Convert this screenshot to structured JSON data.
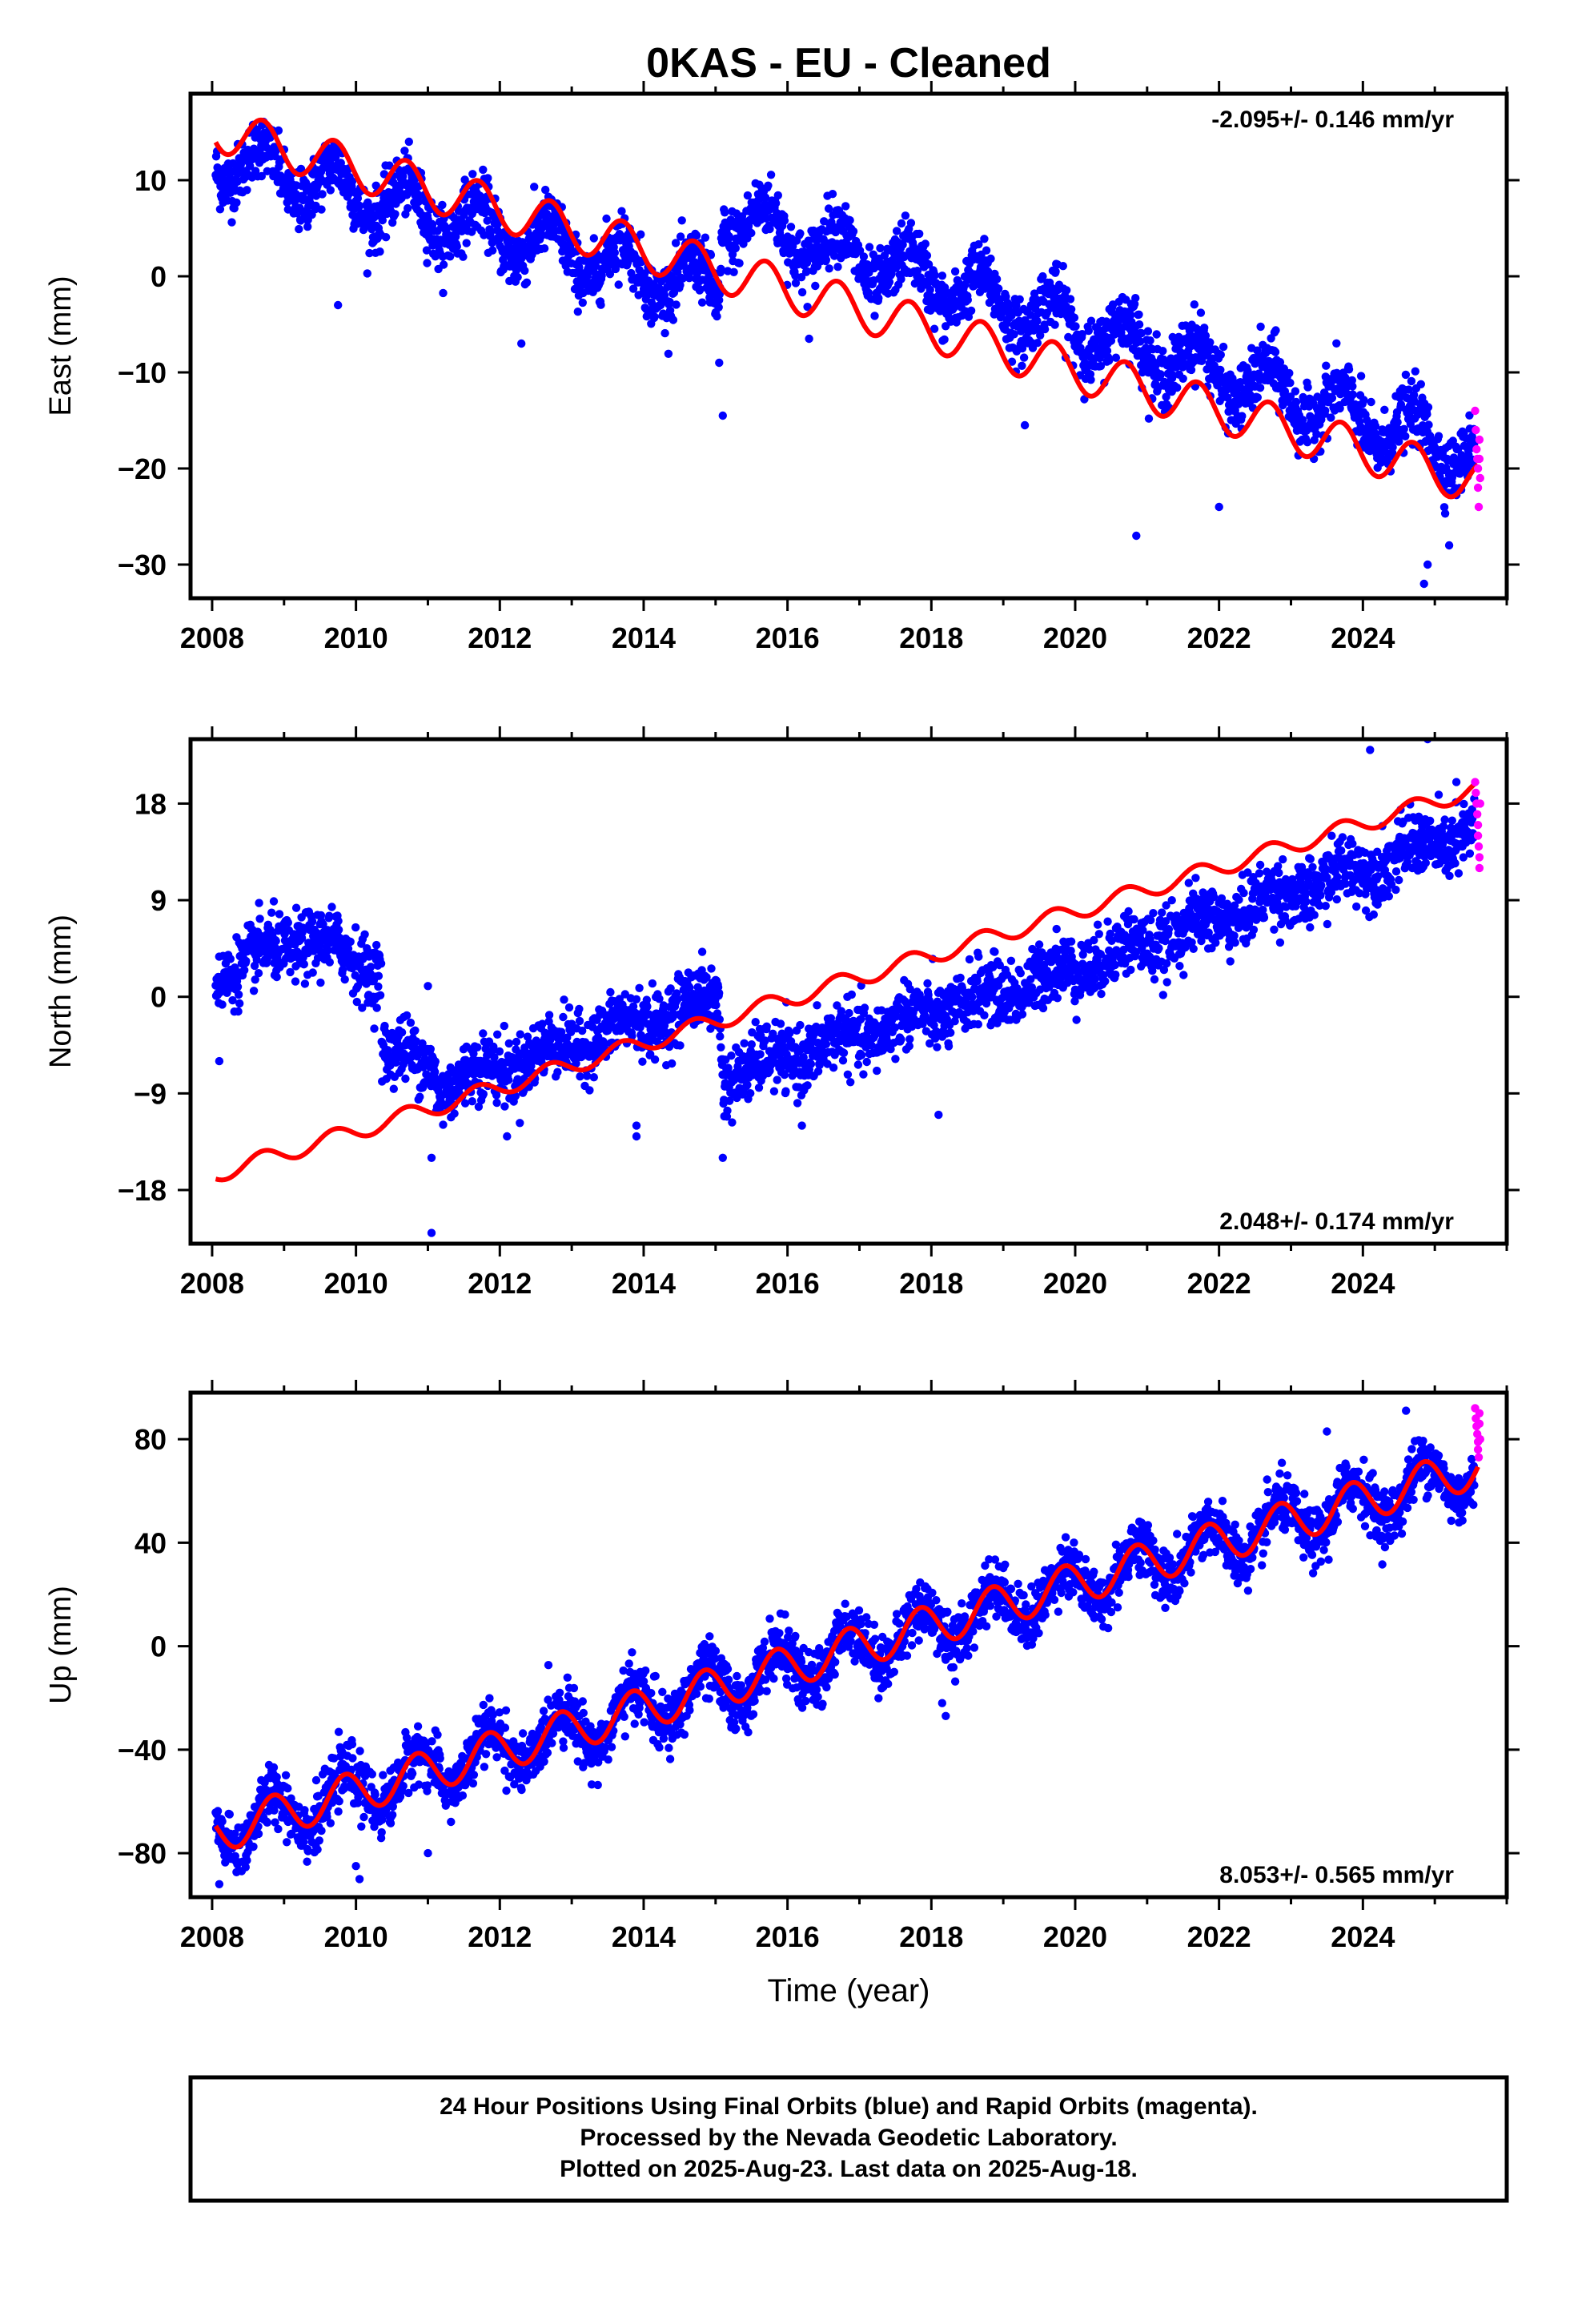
{
  "title": "0KAS  - EU - Cleaned",
  "footer": {
    "lines": [
      "24 Hour Positions Using Final Orbits (blue) and Rapid Orbits (magenta).",
      "Processed by the Nevada Geodetic Laboratory.",
      "Plotted on 2025-Aug-23. Last data on 2025-Aug-18."
    ]
  },
  "colors": {
    "final_orbits": "#0000ff",
    "rapid_orbits": "#ff00ff",
    "model": "#ff0000",
    "frame": "#000000"
  },
  "chart_data": [
    {
      "type": "scatter",
      "id": "east",
      "ylabel": "East (mm)",
      "xlabel": "",
      "xlim": [
        2007.7,
        2026.0
      ],
      "ylim": [
        -33.5,
        19
      ],
      "yticks": [
        -30,
        -20,
        -10,
        0,
        10
      ],
      "xticks": [
        2008,
        2010,
        2012,
        2014,
        2016,
        2018,
        2020,
        2022,
        2024
      ],
      "rate_label": "-2.095+/- 0.146 mm/yr",
      "rate_position": "top-right",
      "grid": false,
      "series": [
        {
          "name": "Final Orbits",
          "color": "#0000ff",
          "trend": [
            [
              2008.05,
              12.5
            ],
            [
              2015.05,
              -1.5
            ],
            [
              2015.1,
              6.5
            ],
            [
              2025.55,
              -18.5
            ]
          ],
          "seasonal_amplitude": 2.5,
          "seasonal_phase_year": 0.45,
          "noise_sd": 1.6,
          "x_range": [
            2008.05,
            2025.55
          ],
          "outliers": [
            [
              2009.75,
              -3
            ],
            [
              2012.3,
              -7
            ],
            [
              2014.1,
              -1.5
            ],
            [
              2015.05,
              -9
            ],
            [
              2015.1,
              -14.5
            ],
            [
              2016.3,
              -6.5
            ],
            [
              2019.3,
              -15.5
            ],
            [
              2020.85,
              -27
            ],
            [
              2022.0,
              -24
            ],
            [
              2024.85,
              -32
            ],
            [
              2024.9,
              -30
            ],
            [
              2025.2,
              -28
            ]
          ]
        },
        {
          "name": "Rapid Orbits",
          "color": "#ff00ff",
          "x_range": [
            2025.56,
            2025.63
          ],
          "values": [
            [
              2025.56,
              -14
            ],
            [
              2025.57,
              -16
            ],
            [
              2025.58,
              -18
            ],
            [
              2025.59,
              -19
            ],
            [
              2025.6,
              -20
            ],
            [
              2025.6,
              -22
            ],
            [
              2025.61,
              -24
            ],
            [
              2025.62,
              -17
            ],
            [
              2025.62,
              -19
            ],
            [
              2025.63,
              -21
            ]
          ]
        },
        {
          "name": "Model",
          "color": "#ff0000",
          "type": "line",
          "x": [
            2008.05,
            2025.6
          ],
          "y_start": 15.3,
          "rate_mm_per_yr": -2.095,
          "seasonal_amplitude": 2.3,
          "seasonal_phase_year": 0.45,
          "steps": [
            [
              2015.1,
              0.0
            ]
          ]
        }
      ]
    },
    {
      "type": "scatter",
      "id": "north",
      "ylabel": "North (mm)",
      "xlabel": "",
      "xlim": [
        2007.7,
        2026.0
      ],
      "ylim": [
        -23,
        24
      ],
      "yticks": [
        -18,
        -9,
        0,
        9,
        18
      ],
      "xticks": [
        2008,
        2010,
        2012,
        2014,
        2016,
        2018,
        2020,
        2022,
        2024
      ],
      "rate_label": "2.048+/- 0.174 mm/yr",
      "rate_position": "bottom-right",
      "grid": false,
      "series": [
        {
          "name": "Final Orbits",
          "color": "#0000ff",
          "trend": [
            [
              2008.05,
              2.0
            ],
            [
              2009.3,
              5.5
            ],
            [
              2010.35,
              2.5
            ],
            [
              2010.36,
              -5.0
            ],
            [
              2011.1,
              -6.5
            ],
            [
              2011.11,
              -8.5
            ],
            [
              2015.05,
              0.0
            ],
            [
              2015.1,
              -7.5
            ],
            [
              2019.0,
              0.5
            ],
            [
              2021.0,
              5.0
            ],
            [
              2025.55,
              15.5
            ]
          ],
          "seasonal_amplitude": 0.8,
          "seasonal_phase_year": 0.45,
          "noise_sd": 1.5,
          "x_range": [
            2008.05,
            2025.55
          ],
          "outliers": [
            [
              2008.1,
              -6
            ],
            [
              2011.05,
              -22
            ],
            [
              2011.05,
              -15
            ],
            [
              2011.0,
              1
            ],
            [
              2012.1,
              -13
            ],
            [
              2013.9,
              -12
            ],
            [
              2013.9,
              -13
            ],
            [
              2015.1,
              -15
            ],
            [
              2016.2,
              -12
            ],
            [
              2018.1,
              -11
            ],
            [
              2021.1,
              3
            ],
            [
              2024.9,
              24
            ],
            [
              2025.3,
              20
            ],
            [
              2024.1,
              23
            ]
          ]
        },
        {
          "name": "Rapid Orbits",
          "color": "#ff00ff",
          "x_range": [
            2025.56,
            2025.63
          ],
          "values": [
            [
              2025.56,
              20
            ],
            [
              2025.57,
              19
            ],
            [
              2025.58,
              18
            ],
            [
              2025.59,
              17
            ],
            [
              2025.6,
              16
            ],
            [
              2025.6,
              15
            ],
            [
              2025.61,
              14
            ],
            [
              2025.62,
              12
            ],
            [
              2025.62,
              13
            ],
            [
              2025.63,
              18
            ]
          ]
        },
        {
          "name": "Model",
          "color": "#ff0000",
          "type": "line",
          "x": [
            2008.05,
            2025.6
          ],
          "y_start": -16.5,
          "rate_mm_per_yr": 2.048,
          "seasonal_amplitude": 0.8,
          "seasonal_phase_year": 0.45,
          "steps": []
        }
      ]
    },
    {
      "type": "scatter",
      "id": "up",
      "ylabel": "Up (mm)",
      "xlabel": "Time (year)",
      "xlim": [
        2007.7,
        2026.0
      ],
      "ylim": [
        -97,
        98
      ],
      "yticks": [
        -80,
        -40,
        0,
        40,
        80
      ],
      "xticks": [
        2008,
        2010,
        2012,
        2014,
        2016,
        2018,
        2020,
        2022,
        2024
      ],
      "rate_label": "8.053+/- 0.565 mm/yr",
      "rate_position": "bottom-right",
      "grid": false,
      "series": [
        {
          "name": "Final Orbits",
          "color": "#0000ff",
          "trend": [
            [
              2008.05,
              -72
            ],
            [
              2025.55,
              68
            ]
          ],
          "seasonal_amplitude": 9,
          "seasonal_phase_year": 0.6,
          "noise_sd": 5.5,
          "x_range": [
            2008.05,
            2025.55
          ],
          "outliers": [
            [
              2008.1,
              -92
            ],
            [
              2010.05,
              -90
            ],
            [
              2010.0,
              -85
            ],
            [
              2011.0,
              -80
            ],
            [
              2018.2,
              -27
            ],
            [
              2018.15,
              -22
            ],
            [
              2024.6,
              91
            ],
            [
              2023.5,
              83
            ]
          ]
        },
        {
          "name": "Rapid Orbits",
          "color": "#ff00ff",
          "x_range": [
            2025.56,
            2025.63
          ],
          "values": [
            [
              2025.56,
              92
            ],
            [
              2025.57,
              88
            ],
            [
              2025.58,
              85
            ],
            [
              2025.59,
              82
            ],
            [
              2025.6,
              79
            ],
            [
              2025.6,
              76
            ],
            [
              2025.61,
              73
            ],
            [
              2025.62,
              90
            ],
            [
              2025.62,
              86
            ],
            [
              2025.63,
              80
            ]
          ]
        },
        {
          "name": "Model",
          "color": "#ff0000",
          "type": "line",
          "x": [
            2008.05,
            2025.6
          ],
          "y_start": -72,
          "rate_mm_per_yr": 8.053,
          "seasonal_amplitude": 8,
          "seasonal_phase_year": 0.6,
          "steps": []
        }
      ]
    }
  ]
}
